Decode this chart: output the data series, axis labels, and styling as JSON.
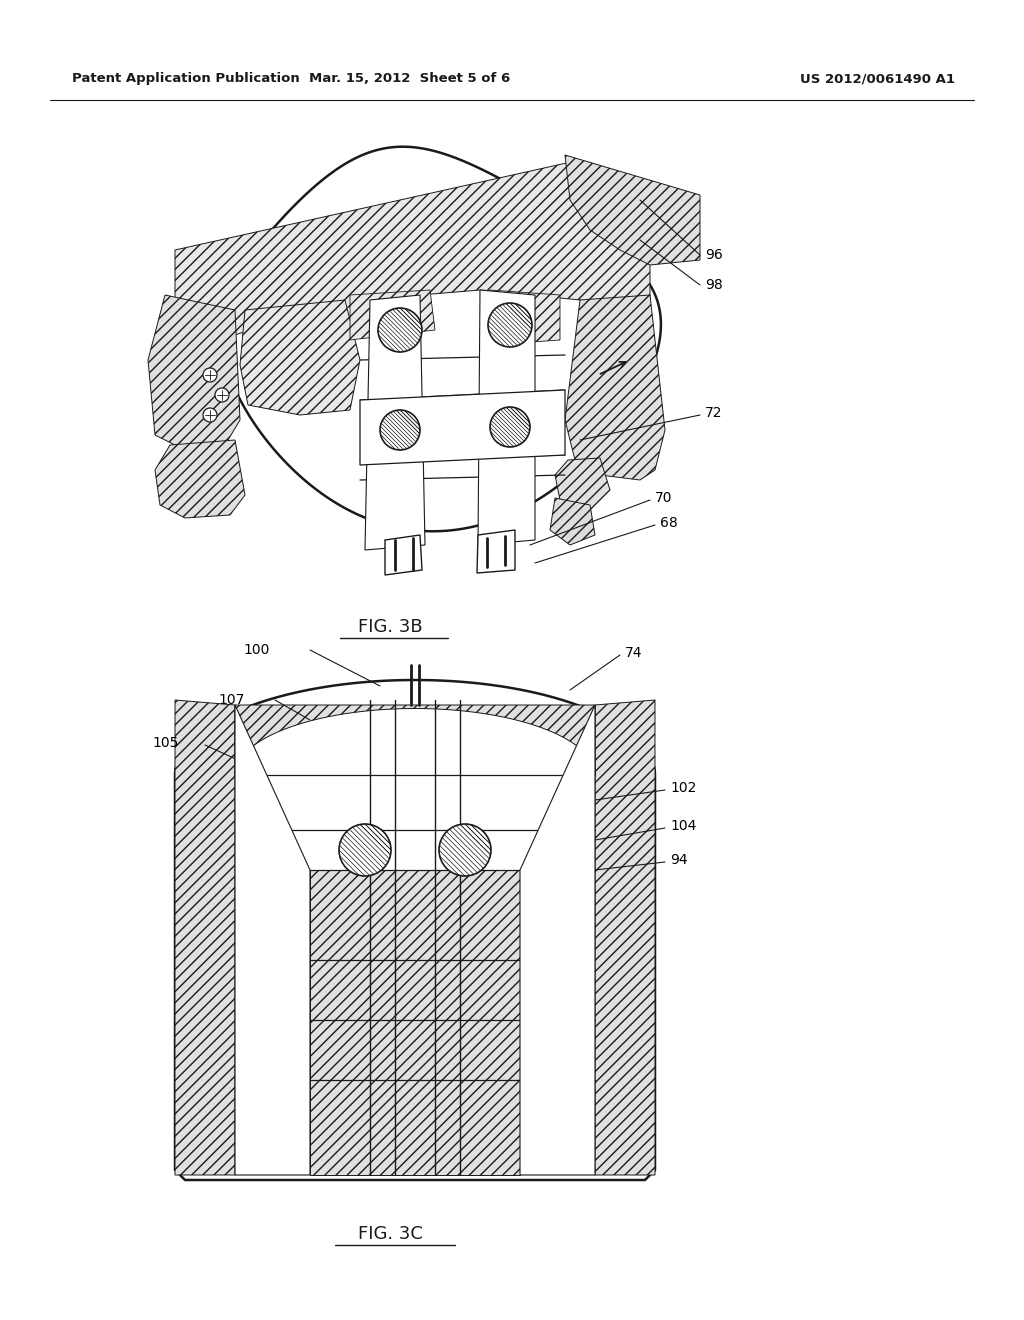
{
  "bg_color": "#ffffff",
  "line_color": "#1a1a1a",
  "fig_width": 10.24,
  "fig_height": 13.2,
  "dpi": 100,
  "header_left": "Patent Application Publication",
  "header_center": "Mar. 15, 2012  Sheet 5 of 6",
  "header_right": "US 2012/0061490 A1",
  "fig3b_label": "FIG. 3B",
  "fig3c_label": "FIG. 3C"
}
